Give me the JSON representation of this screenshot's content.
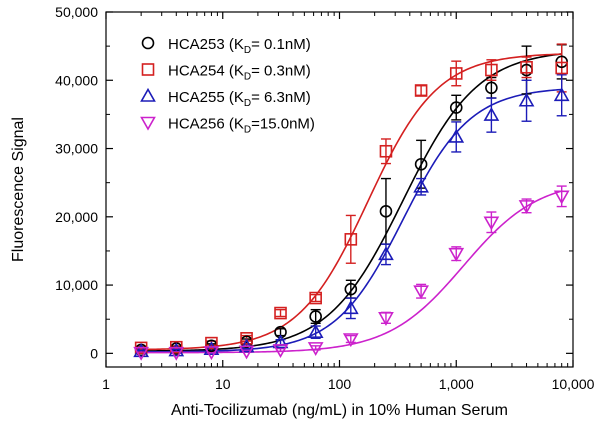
{
  "chart_data": {
    "type": "scatter",
    "xscale": "log",
    "xlabel": "Anti-Tocilizumab (ng/mL) in 10% Human Serum",
    "ylabel": "Fluorescence Signal",
    "xlim": [
      1,
      10000
    ],
    "ylim": [
      -2000,
      50000
    ],
    "xticks": [
      1,
      10,
      100,
      1000,
      10000
    ],
    "xtick_labels": [
      "1",
      "10",
      "100",
      "1,000",
      "10,000"
    ],
    "yticks": [
      0,
      10000,
      20000,
      30000,
      40000,
      50000
    ],
    "ytick_labels": [
      "0",
      "10,000",
      "20,000",
      "30,000",
      "40,000",
      "50,000"
    ],
    "grid": false,
    "legend_position": "top-left",
    "x": [
      2,
      4,
      8,
      16,
      31.25,
      62.5,
      125,
      250,
      500,
      1000,
      2000,
      4000,
      8000
    ],
    "series": [
      {
        "name": "HCA253",
        "kd": "0.1nM",
        "marker": "circle",
        "color": "#000000",
        "values": [
          500,
          700,
          1100,
          1700,
          3100,
          5400,
          9400,
          20800,
          27700,
          36000,
          38900,
          41500,
          42700
        ],
        "errors": [
          200,
          200,
          300,
          400,
          500,
          1000,
          1300,
          4800,
          3500,
          1800,
          1500,
          3500,
          2500
        ],
        "fit": {
          "bottom": 300,
          "top": 44500,
          "ec50": 350,
          "hill": 1.35
        }
      },
      {
        "name": "HCA254",
        "kd": "0.3nM",
        "marker": "square",
        "color": "#d42020",
        "values": [
          800,
          900,
          1500,
          2200,
          5900,
          8100,
          16700,
          29600,
          38500,
          41000,
          41500,
          41900,
          41800
        ],
        "errors": [
          200,
          200,
          300,
          400,
          500,
          500,
          3500,
          1800,
          700,
          1800,
          1500,
          1500,
          3500
        ],
        "fit": {
          "bottom": 500,
          "top": 44000,
          "ec50": 175,
          "hill": 1.45
        }
      },
      {
        "name": "HCA255",
        "kd": "6.3nM",
        "marker": "triangle-up",
        "color": "#1c1cb8",
        "values": [
          300,
          400,
          600,
          1000,
          1600,
          3100,
          6600,
          14500,
          24400,
          31700,
          34900,
          37000,
          37800
        ],
        "errors": [
          150,
          150,
          200,
          300,
          400,
          900,
          1500,
          1500,
          1200,
          2200,
          2500,
          3000,
          3000
        ],
        "fit": {
          "bottom": 200,
          "top": 39000,
          "ec50": 350,
          "hill": 1.5
        }
      },
      {
        "name": "HCA256",
        "kd": "15.0nM",
        "marker": "triangle-down",
        "color": "#cc22cc",
        "values": [
          100,
          100,
          200,
          300,
          500,
          800,
          2100,
          5200,
          9100,
          14600,
          19200,
          21600,
          23000
        ],
        "errors": [
          100,
          100,
          100,
          150,
          200,
          300,
          500,
          800,
          1000,
          1000,
          1500,
          1000,
          1500
        ],
        "fit": {
          "bottom": 100,
          "top": 25500,
          "ec50": 1150,
          "hill": 1.35
        }
      }
    ]
  }
}
